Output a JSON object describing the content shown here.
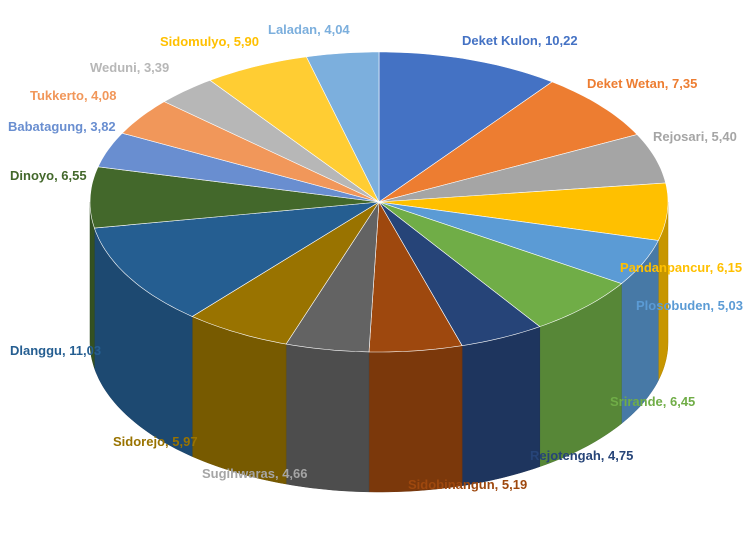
{
  "chart_data": {
    "type": "pie",
    "categories": [
      "Deket Kulon",
      "Deket Wetan",
      "Rejosari",
      "Pandanpancur",
      "Plosobuden",
      "Srirande",
      "Rejotengah",
      "Sidobinangun",
      "Sugihwaras",
      "Sidorejo",
      "Dlanggu",
      "Dinoyo",
      "Babatagung",
      "Tukkerto",
      "Weduni",
      "Sidomulyo",
      "Laladan"
    ],
    "values": [
      10.22,
      7.35,
      5.4,
      6.15,
      5.03,
      6.45,
      4.75,
      5.19,
      4.66,
      5.97,
      11.03,
      6.55,
      3.82,
      4.08,
      3.39,
      5.9,
      4.04
    ],
    "value_labels": [
      "10,22",
      "7,35",
      "5,40",
      "6,15",
      "5,03",
      "6,45",
      "4,75",
      "5,19",
      "4,66",
      "5,97",
      "11,03",
      "6,55",
      "3,82",
      "4,08",
      "3,39",
      "5,90",
      "4,04"
    ],
    "colors": [
      "#4472c4",
      "#ed7d31",
      "#a5a5a5",
      "#ffc000",
      "#5b9bd5",
      "#70ad47",
      "#264478",
      "#9e480e",
      "#636363",
      "#997300",
      "#255e91",
      "#43682b",
      "#698ed0",
      "#f1975a",
      "#b7b7b7",
      "#ffcd33",
      "#7cafdd"
    ],
    "label_colors": [
      "#4472c4",
      "#ed7d31",
      "#a5a5a5",
      "#ffc000",
      "#5b9bd5",
      "#70ad47",
      "#264478",
      "#9e480e",
      "#a5a5a5",
      "#997300",
      "#255e91",
      "#43682b",
      "#698ed0",
      "#f1975a",
      "#b7b7b7",
      "#ffc000",
      "#7cafdd"
    ]
  }
}
